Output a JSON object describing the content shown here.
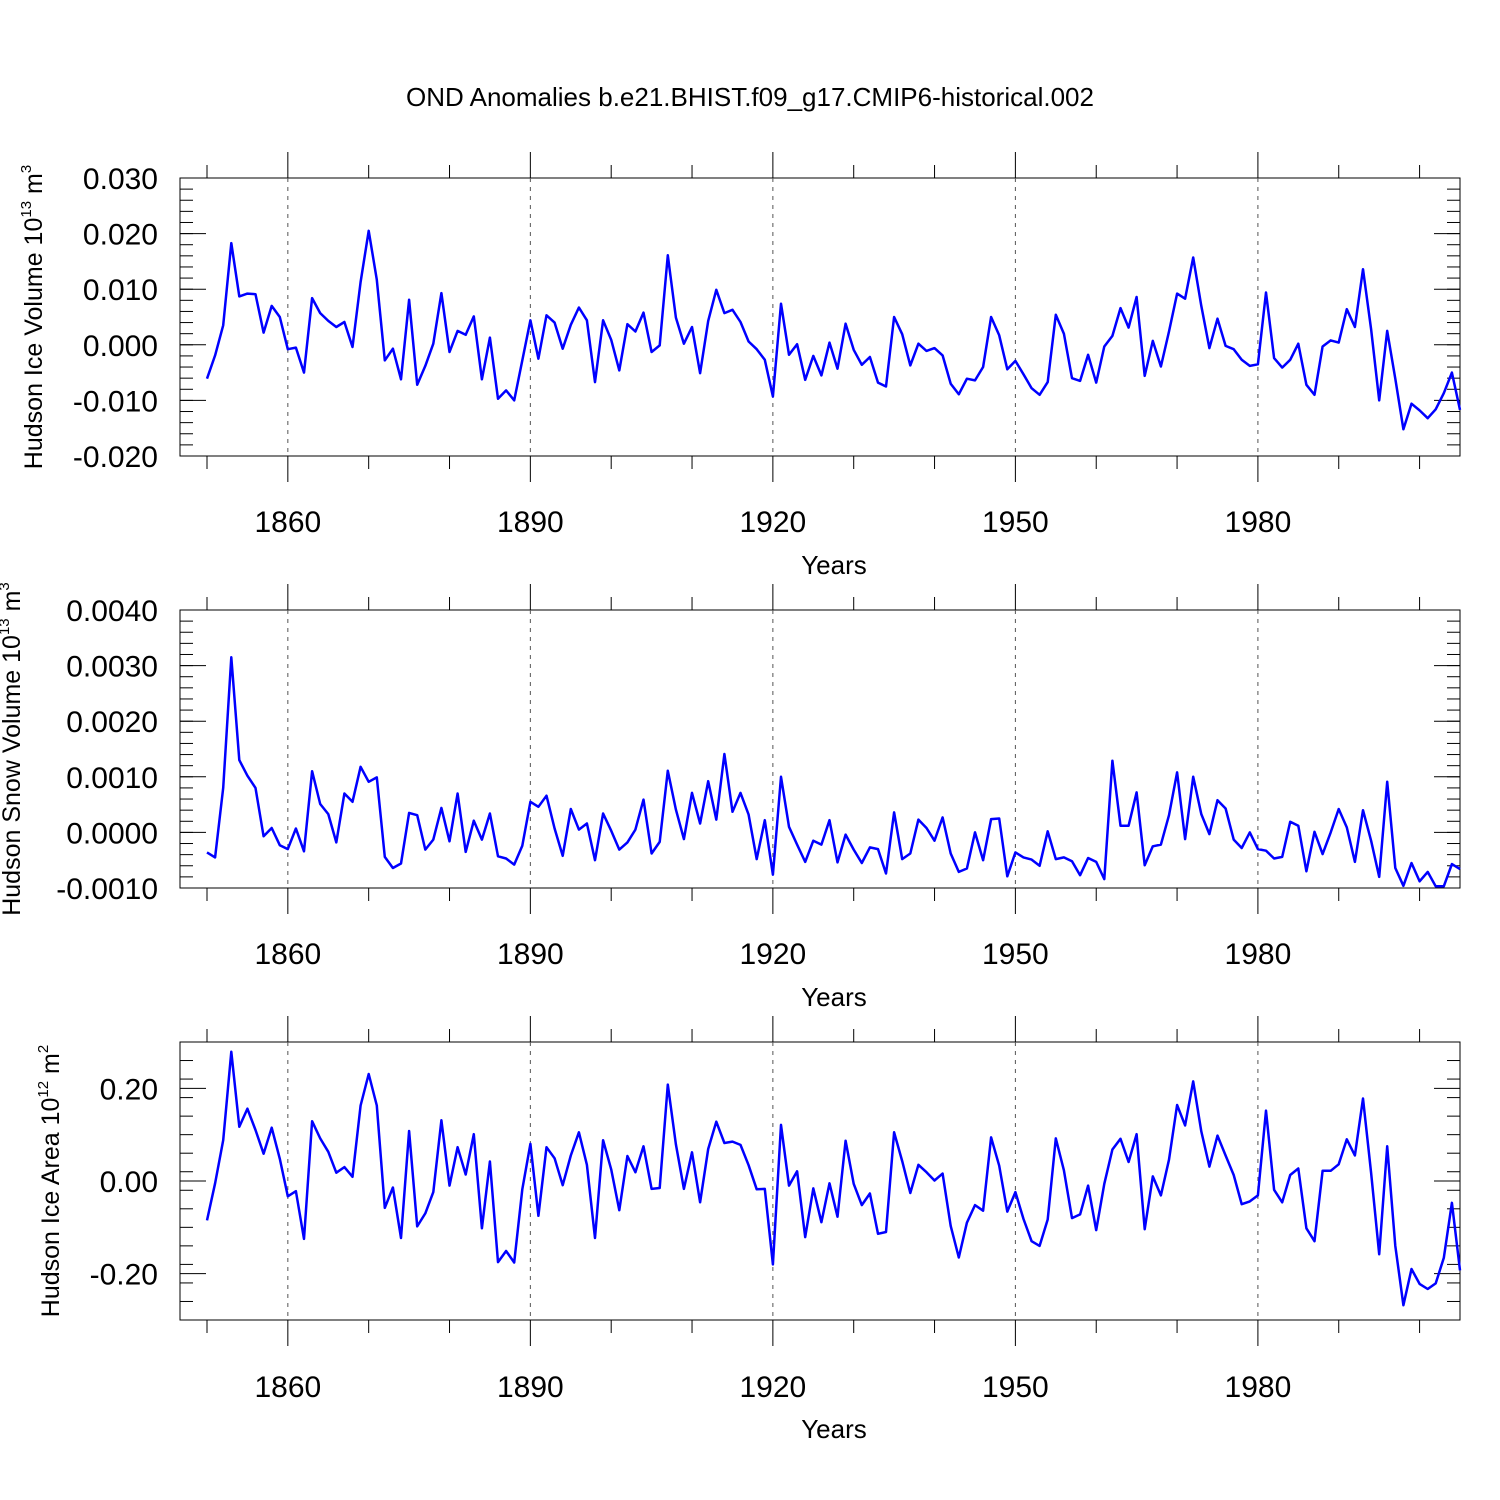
{
  "figure_title": "OND Anomalies b.e21.BHIST.f09_g17.CMIP6-historical.002",
  "colors": {
    "series": "#0000ff",
    "axis": "#000000",
    "grid": "#555555"
  },
  "chart_data": [
    {
      "type": "line",
      "title": "OND Anomalies b.e21.BHIST.f09_g17.CMIP6-historical.002",
      "xlabel": "Years",
      "ylabel": "Hudson Ice Volume 10",
      "ylabel_exp": "13",
      "ylabel_unit": " m",
      "ylabel_unit_exp": "3",
      "xlim": [
        1850,
        2005
      ],
      "ylim": [
        -0.02,
        0.03
      ],
      "x_ticks": [
        1860,
        1890,
        1920,
        1950,
        1980
      ],
      "y_ticks": [
        -0.02,
        -0.01,
        0.0,
        0.01,
        0.02,
        0.03
      ],
      "y_tick_labels": [
        "-0.020",
        "-0.010",
        "0.000",
        "0.010",
        "0.020",
        "0.030"
      ],
      "x_start": 1850,
      "values": [
        -0.0061,
        -0.0019,
        0.0035,
        0.0183,
        0.0087,
        0.0092,
        0.0091,
        0.0022,
        0.007,
        0.005,
        -0.0008,
        -0.0005,
        -0.005,
        0.0084,
        0.0057,
        0.0043,
        0.0032,
        0.0041,
        -0.0004,
        0.0113,
        0.0205,
        0.0117,
        -0.0028,
        -0.0007,
        -0.0062,
        0.0081,
        -0.0072,
        -0.0038,
        0.0002,
        0.0093,
        -0.0013,
        0.0025,
        0.0018,
        0.0051,
        -0.0062,
        0.0013,
        -0.0097,
        -0.0082,
        -0.01,
        -0.0028,
        0.0044,
        -0.0025,
        0.0053,
        0.004,
        -0.0007,
        0.0036,
        0.0067,
        0.0044,
        -0.0067,
        0.0044,
        0.0009,
        -0.0046,
        0.0037,
        0.0024,
        0.0058,
        -0.0013,
        -0.0001,
        0.0161,
        0.0049,
        0.0002,
        0.0032,
        -0.0051,
        0.0043,
        0.0099,
        0.0057,
        0.0063,
        0.0041,
        0.0006,
        -0.0008,
        -0.0027,
        -0.0093,
        0.0074,
        -0.0018,
        0.0001,
        -0.0063,
        -0.002,
        -0.0055,
        0.0004,
        -0.0043,
        0.0038,
        -0.0009,
        -0.0036,
        -0.0022,
        -0.0068,
        -0.0075,
        0.005,
        0.0019,
        -0.0037,
        0.0002,
        -0.0011,
        -0.0006,
        -0.0019,
        -0.007,
        -0.0089,
        -0.0061,
        -0.0064,
        -0.004,
        0.005,
        0.0017,
        -0.0044,
        -0.0029,
        -0.0053,
        -0.0078,
        -0.009,
        -0.0067,
        0.0054,
        0.002,
        -0.006,
        -0.0065,
        -0.0018,
        -0.0068,
        -0.0003,
        0.0016,
        0.0066,
        0.0031,
        0.0086,
        -0.0056,
        0.0007,
        -0.0039,
        0.0024,
        0.0092,
        0.0083,
        0.0157,
        0.007,
        -0.0006,
        0.0047,
        -0.0002,
        -0.0008,
        -0.0027,
        -0.0038,
        -0.0035,
        0.0094,
        -0.0024,
        -0.0041,
        -0.0027,
        0.0002,
        -0.0072,
        -0.009,
        -0.0003,
        0.0008,
        0.0004,
        0.0064,
        0.0032,
        0.0136,
        0.0028,
        -0.01,
        0.0025,
        -0.0061,
        -0.0152,
        -0.0106,
        -0.0118,
        -0.0132,
        -0.0116,
        -0.0087,
        -0.005,
        -0.0117
      ]
    },
    {
      "type": "line",
      "xlabel": "Years",
      "ylabel": "Hudson Snow Volume 10",
      "ylabel_exp": "13",
      "ylabel_unit": " m",
      "ylabel_unit_exp": "3",
      "xlim": [
        1850,
        2005
      ],
      "ylim": [
        -0.001,
        0.004
      ],
      "x_ticks": [
        1860,
        1890,
        1920,
        1950,
        1980
      ],
      "y_ticks": [
        -0.001,
        0.0,
        0.001,
        0.002,
        0.003,
        0.004
      ],
      "y_tick_labels": [
        "-0.0010",
        "0.0000",
        "0.0010",
        "0.0020",
        "0.0030",
        "0.0040"
      ],
      "x_start": 1850,
      "values": [
        -0.00036,
        -0.00045,
        0.0008,
        0.00315,
        0.0013,
        0.00102,
        0.0008,
        -7e-05,
        8e-05,
        -0.00023,
        -0.0003,
        7e-05,
        -0.00034,
        0.0011,
        0.00051,
        0.00033,
        -0.00018,
        0.0007,
        0.00055,
        0.00118,
        0.00091,
        0.00099,
        -0.00044,
        -0.00064,
        -0.00056,
        0.00035,
        0.00031,
        -0.00031,
        -0.00013,
        0.00044,
        -0.00016,
        0.0007,
        -0.00035,
        0.00021,
        -0.00013,
        0.00034,
        -0.00043,
        -0.00047,
        -0.00058,
        -0.00024,
        0.00055,
        0.00046,
        0.00066,
        7e-05,
        -0.00042,
        0.00042,
        5e-05,
        0.00016,
        -0.0005,
        0.00034,
        3e-05,
        -0.00031,
        -0.00018,
        5e-05,
        0.00059,
        -0.00038,
        -0.00017,
        0.00111,
        0.00041,
        -0.00012,
        0.00071,
        0.00016,
        0.00092,
        0.00023,
        0.00141,
        0.00037,
        0.00071,
        0.00032,
        -0.00048,
        0.00022,
        -0.00076,
        0.001,
        0.0001,
        -0.00022,
        -0.00053,
        -0.00015,
        -0.00022,
        0.00022,
        -0.00054,
        -4e-05,
        -0.00031,
        -0.00055,
        -0.00027,
        -0.0003,
        -0.00074,
        0.00036,
        -0.00048,
        -0.00038,
        0.00023,
        8e-05,
        -0.00015,
        0.00027,
        -0.00038,
        -0.00071,
        -0.00065,
        0.0,
        -0.0005,
        0.00024,
        0.00025,
        -0.00079,
        -0.00036,
        -0.00045,
        -0.00049,
        -0.0006,
        2e-05,
        -0.00048,
        -0.00045,
        -0.00052,
        -0.00077,
        -0.00046,
        -0.00053,
        -0.00084,
        0.00129,
        0.00012,
        0.00012,
        0.00072,
        -0.00059,
        -0.00025,
        -0.00022,
        0.00031,
        0.00108,
        -0.00012,
        0.001,
        0.00033,
        -3e-05,
        0.00058,
        0.00043,
        -0.00013,
        -0.00028,
        0.0,
        -0.0003,
        -0.00033,
        -0.00047,
        -0.00044,
        0.00019,
        0.00012,
        -0.0007,
        1e-05,
        -0.00039,
        0.0,
        0.00042,
        9e-05,
        -0.00053,
        0.0004,
        -0.00015,
        -0.0008,
        0.00091,
        -0.00064,
        -0.00096,
        -0.00055,
        -0.00088,
        -0.00071,
        -0.00097,
        -0.00097,
        -0.00057,
        -0.00066
      ]
    },
    {
      "type": "line",
      "xlabel": "Years",
      "ylabel": "Hudson Ice Area 10",
      "ylabel_exp": "12",
      "ylabel_unit": " m",
      "ylabel_unit_exp": "2",
      "xlim": [
        1850,
        2005
      ],
      "ylim": [
        -0.3,
        0.3
      ],
      "x_ticks": [
        1860,
        1890,
        1920,
        1950,
        1980
      ],
      "y_ticks": [
        -0.2,
        0.0,
        0.2
      ],
      "y_tick_labels": [
        "-0.20",
        "0.00",
        "0.20"
      ],
      "x_start": 1850,
      "values": [
        -0.085,
        -0.005,
        0.088,
        0.279,
        0.117,
        0.156,
        0.11,
        0.059,
        0.115,
        0.048,
        -0.033,
        -0.022,
        -0.125,
        0.129,
        0.092,
        0.063,
        0.018,
        0.03,
        0.009,
        0.163,
        0.231,
        0.163,
        -0.058,
        -0.014,
        -0.123,
        0.108,
        -0.098,
        -0.07,
        -0.024,
        0.131,
        -0.01,
        0.073,
        0.014,
        0.101,
        -0.102,
        0.042,
        -0.175,
        -0.151,
        -0.176,
        -0.018,
        0.08,
        -0.075,
        0.073,
        0.049,
        -0.009,
        0.055,
        0.105,
        0.035,
        -0.123,
        0.088,
        0.025,
        -0.063,
        0.054,
        0.019,
        0.075,
        -0.017,
        -0.015,
        0.208,
        0.079,
        -0.017,
        0.062,
        -0.046,
        0.069,
        0.128,
        0.082,
        0.085,
        0.078,
        0.034,
        -0.018,
        -0.017,
        -0.18,
        0.121,
        -0.01,
        0.021,
        -0.121,
        -0.016,
        -0.089,
        -0.005,
        -0.077,
        0.087,
        -0.006,
        -0.052,
        -0.027,
        -0.114,
        -0.11,
        0.105,
        0.043,
        -0.026,
        0.035,
        0.019,
        0.001,
        0.016,
        -0.097,
        -0.165,
        -0.09,
        -0.052,
        -0.064,
        0.094,
        0.033,
        -0.066,
        -0.024,
        -0.082,
        -0.13,
        -0.14,
        -0.083,
        0.092,
        0.023,
        -0.08,
        -0.072,
        -0.01,
        -0.106,
        -0.006,
        0.068,
        0.091,
        0.041,
        0.101,
        -0.104,
        0.01,
        -0.031,
        0.046,
        0.164,
        0.12,
        0.215,
        0.107,
        0.031,
        0.098,
        0.055,
        0.013,
        -0.05,
        -0.044,
        -0.031,
        0.152,
        -0.019,
        -0.046,
        0.013,
        0.027,
        -0.102,
        -0.13,
        0.022,
        0.022,
        0.036,
        0.09,
        0.055,
        0.178,
        0.018,
        -0.158,
        0.075,
        -0.14,
        -0.268,
        -0.19,
        -0.222,
        -0.233,
        -0.221,
        -0.166,
        -0.047,
        -0.193
      ]
    }
  ]
}
